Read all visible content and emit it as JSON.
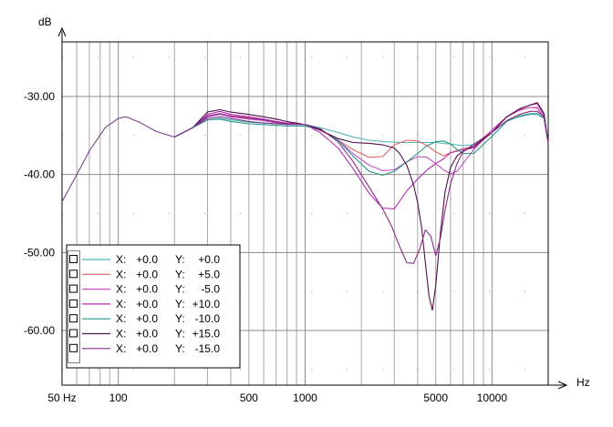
{
  "chart_data": {
    "type": "line",
    "title": "",
    "xlabel": "Hz",
    "ylabel": "dB",
    "x_scale": "log",
    "xlim": [
      50,
      20000
    ],
    "ylim": [
      -67,
      -23
    ],
    "grid": true,
    "legend_position": "bottom-left",
    "x_tick_labels": [
      {
        "value": 50,
        "label": "50 Hz"
      },
      {
        "value": 100,
        "label": "100"
      },
      {
        "value": 500,
        "label": "500"
      },
      {
        "value": 1000,
        "label": "1000"
      },
      {
        "value": 5000,
        "label": "5000"
      },
      {
        "value": 10000,
        "label": "10000"
      }
    ],
    "y_tick_labels": [
      {
        "value": -30,
        "label": "-30.00"
      },
      {
        "value": -40,
        "label": "-40.00"
      },
      {
        "value": -50,
        "label": "-50.00"
      },
      {
        "value": -60,
        "label": "-60.00"
      }
    ],
    "base_curve": {
      "x": [
        50,
        60,
        70,
        85,
        100,
        110,
        130,
        160,
        200,
        250,
        300,
        350,
        400,
        500,
        600,
        700,
        800,
        1000,
        1200
      ],
      "y": [
        -43.5,
        -40,
        -37,
        -34,
        -32.8,
        -32.6,
        -33.3,
        -34.5,
        -35.2,
        -34,
        -32.8,
        -32.6,
        -32.8,
        -33.2,
        -33.4,
        -33.5,
        -33.6,
        -33.6,
        -34.1
      ],
      "color": "#7a3f8e"
    },
    "series": [
      {
        "legend": {
          "x_label": "X:",
          "x_value": "+0.0",
          "y_label": "Y:",
          "y_value": "+0.0"
        },
        "color": "#4fb4b4",
        "x": [
          200,
          250,
          300,
          350,
          400,
          500,
          600,
          700,
          800,
          1000,
          1200,
          1500,
          1800,
          2200,
          2700,
          3300,
          4000,
          5000,
          6000,
          7000,
          8000,
          10000,
          12000,
          14000,
          16000,
          17500,
          19000,
          20000
        ],
        "y": [
          -35.2,
          -34,
          -33,
          -32.8,
          -33,
          -33.3,
          -33.4,
          -33.5,
          -33.6,
          -33.6,
          -34,
          -34.6,
          -35.2,
          -35.6,
          -35.8,
          -35.9,
          -35.9,
          -35.9,
          -36.1,
          -36.3,
          -36.2,
          -34.6,
          -33.1,
          -32.6,
          -32.3,
          -32.3,
          -32.8,
          -36
        ]
      },
      {
        "legend": {
          "x_label": "X:",
          "x_value": "+0.0",
          "y_label": "Y:",
          "y_value": "+5.0"
        },
        "color": "#e06363",
        "x": [
          200,
          250,
          300,
          350,
          400,
          500,
          600,
          700,
          800,
          1000,
          1200,
          1500,
          1800,
          2200,
          2600,
          3000,
          3500,
          4000,
          4500,
          5000,
          5500,
          6000,
          7000,
          8000,
          10000,
          12000,
          14000,
          16000,
          17500,
          19000,
          20000
        ],
        "y": [
          -35.2,
          -34,
          -32.5,
          -32.2,
          -32.5,
          -32.7,
          -33,
          -33.3,
          -33.5,
          -33.6,
          -34.3,
          -35.6,
          -36.8,
          -37.8,
          -37.7,
          -36.2,
          -35.6,
          -35.7,
          -36.3,
          -37.1,
          -37.6,
          -37.2,
          -36.7,
          -36.4,
          -34.3,
          -32.6,
          -31.7,
          -31.4,
          -31.5,
          -32.8,
          -36
        ]
      },
      {
        "legend": {
          "x_label": "X:",
          "x_value": "+0.0",
          "y_label": "Y:",
          "y_value": "-5.0"
        },
        "color": "#c84ec8",
        "x": [
          200,
          250,
          300,
          350,
          400,
          500,
          600,
          700,
          800,
          1000,
          1200,
          1500,
          1800,
          2200,
          2600,
          3000,
          3500,
          4000,
          4500,
          5000,
          5500,
          6000,
          6500,
          7000,
          8000,
          10000,
          12000,
          14000,
          16000,
          17500,
          19000,
          20000
        ],
        "y": [
          -35.2,
          -34,
          -32.6,
          -32.3,
          -32.6,
          -32.9,
          -33.1,
          -33.4,
          -33.5,
          -33.6,
          -34.2,
          -35.6,
          -37.3,
          -38.8,
          -39.5,
          -39.4,
          -38.4,
          -37.7,
          -37.8,
          -38.6,
          -39.4,
          -39.9,
          -39.6,
          -38.6,
          -36.8,
          -34.3,
          -32.6,
          -31.8,
          -31.4,
          -31.4,
          -32.8,
          -36
        ]
      },
      {
        "legend": {
          "x_label": "X:",
          "x_value": "+0.0",
          "y_label": "Y:",
          "y_value": "+10.0"
        },
        "color": "#b42cb4",
        "x": [
          200,
          250,
          300,
          350,
          400,
          500,
          600,
          700,
          800,
          1000,
          1200,
          1500,
          1800,
          2200,
          2600,
          3000,
          3500,
          4000,
          4500,
          5000,
          5500,
          6000,
          6500,
          7000,
          8000,
          10000,
          12000,
          14000,
          16000,
          17500,
          19000,
          20000
        ],
        "y": [
          -35.2,
          -34,
          -32.3,
          -31.9,
          -32.3,
          -32.6,
          -32.9,
          -33.2,
          -33.4,
          -33.6,
          -34.6,
          -36.6,
          -39.2,
          -42.4,
          -44.3,
          -44.4,
          -42.1,
          -40.6,
          -39.4,
          -38.6,
          -38,
          -37.2,
          -37,
          -36.8,
          -36.6,
          -34.6,
          -32.6,
          -31.6,
          -31.1,
          -30.9,
          -32.5,
          -36
        ]
      },
      {
        "legend": {
          "x_label": "X:",
          "x_value": "+0.0",
          "y_label": "Y:",
          "y_value": "-10.0"
        },
        "color": "#2a9a8a",
        "x": [
          200,
          250,
          300,
          350,
          400,
          500,
          600,
          700,
          800,
          1000,
          1200,
          1500,
          1800,
          2200,
          2600,
          3000,
          3500,
          4000,
          4500,
          5000,
          5500,
          6000,
          6500,
          7000,
          8000,
          10000,
          12000,
          14000,
          16000,
          17500,
          19000,
          20000
        ],
        "y": [
          -35.2,
          -34,
          -33,
          -32.9,
          -33.2,
          -33.5,
          -33.6,
          -33.7,
          -33.8,
          -33.8,
          -34.2,
          -35.6,
          -37.6,
          -39.6,
          -40.1,
          -39.6,
          -38.4,
          -37.3,
          -36.3,
          -35.8,
          -35.7,
          -36.1,
          -36.8,
          -37.3,
          -37.3,
          -35.1,
          -33.2,
          -32.5,
          -32.2,
          -32.2,
          -32.8,
          -36
        ]
      },
      {
        "legend": {
          "x_label": "X:",
          "x_value": "+0.0",
          "y_label": "Y:",
          "y_value": "+15.0"
        },
        "color": "#50104a",
        "x": [
          200,
          250,
          300,
          350,
          400,
          500,
          600,
          700,
          800,
          1000,
          1200,
          1500,
          1800,
          2200,
          2600,
          3000,
          3200,
          3500,
          3800,
          4000,
          4200,
          4400,
          4600,
          4800,
          5000,
          5300,
          5600,
          6000,
          6500,
          7000,
          8000,
          10000,
          12000,
          14000,
          16000,
          17500,
          19000,
          20000
        ],
        "y": [
          -35.2,
          -34,
          -32,
          -31.7,
          -32,
          -32.3,
          -32.6,
          -32.9,
          -33.2,
          -33.6,
          -34.3,
          -35.4,
          -35.9,
          -36,
          -36.2,
          -36.6,
          -37.3,
          -38.8,
          -41.3,
          -43.6,
          -46.8,
          -51.3,
          -55.6,
          -57.4,
          -54.2,
          -47.4,
          -42.3,
          -39.1,
          -37.6,
          -37,
          -36.4,
          -34.6,
          -32.6,
          -31.6,
          -31.1,
          -30.8,
          -32.2,
          -36
        ]
      },
      {
        "legend": {
          "x_label": "X:",
          "x_value": "+0.0",
          "y_label": "Y:",
          "y_value": "-15.0"
        },
        "color": "#8a2a8a",
        "x": [
          200,
          250,
          300,
          350,
          400,
          500,
          600,
          700,
          800,
          1000,
          1200,
          1500,
          1800,
          2200,
          2600,
          2900,
          3200,
          3500,
          3800,
          4100,
          4400,
          4700,
          5000,
          5300,
          5600,
          6000,
          6500,
          7000,
          8000,
          10000,
          12000,
          14000,
          16000,
          17500,
          19000,
          20000
        ],
        "y": [
          -35.2,
          -34,
          -32.5,
          -32.2,
          -32.5,
          -32.8,
          -33,
          -33.3,
          -33.5,
          -33.6,
          -34.1,
          -35.8,
          -38.3,
          -41.6,
          -44.4,
          -46.6,
          -49.2,
          -51.3,
          -51.4,
          -49.6,
          -47.1,
          -47.9,
          -50.4,
          -48.1,
          -44.6,
          -41.2,
          -38.6,
          -37.1,
          -36.1,
          -34.6,
          -33.1,
          -32.3,
          -31.9,
          -31.9,
          -32.6,
          -36
        ]
      }
    ]
  }
}
